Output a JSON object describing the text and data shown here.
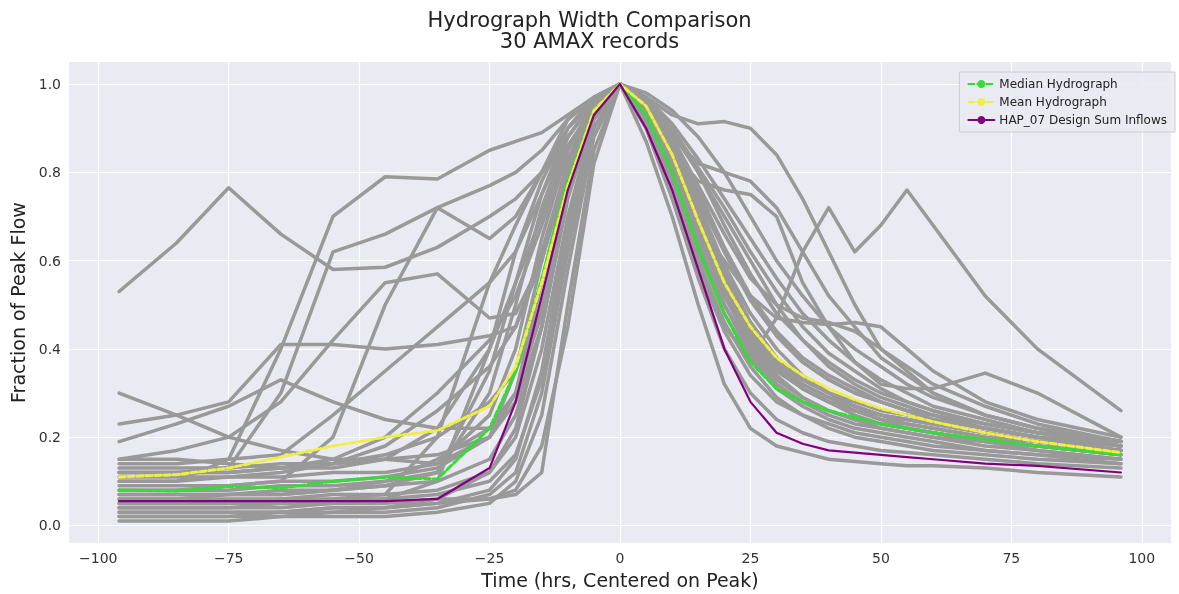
{
  "chart_data": {
    "type": "line",
    "title": "Hydrograph Width Comparison",
    "subtitle": "30 AMAX records",
    "xlabel": "Time (hrs, Centered on Peak)",
    "ylabel": "Fraction of Peak Flow",
    "x": [
      -96,
      -85,
      -75,
      -65,
      -55,
      -45,
      -35,
      -25,
      -20,
      -15,
      -10,
      -5,
      0,
      5,
      10,
      15,
      20,
      25,
      30,
      35,
      40,
      45,
      50,
      55,
      60,
      70,
      80,
      96
    ],
    "xlim": [
      -105.6,
      105.6
    ],
    "xticks": [
      {
        "value": -100,
        "label": "−100"
      },
      {
        "value": -75,
        "label": "−75"
      },
      {
        "value": -50,
        "label": "−50"
      },
      {
        "value": -25,
        "label": "−25"
      },
      0,
      25,
      50,
      75,
      100
    ],
    "ylim": [
      -0.04,
      1.05
    ],
    "yticks": [
      {
        "value": 0,
        "label": "0.0"
      },
      {
        "value": 0.2,
        "label": "0.2"
      },
      {
        "value": 0.4,
        "label": "0.4"
      },
      {
        "value": 0.6,
        "label": "0.6"
      },
      {
        "value": 0.8,
        "label": "0.8"
      },
      {
        "value": 1,
        "label": "1.0"
      }
    ],
    "grid": true,
    "legend": "top right",
    "marker": "none",
    "line_style": "solid",
    "series": [
      {
        "color": "#999999",
        "values": [
          0.53,
          0.64,
          0.765,
          0.66,
          0.58,
          0.585,
          0.63,
          0.7,
          0.74,
          0.8,
          0.88,
          0.96,
          1,
          0.92,
          0.8,
          0.6,
          0.45,
          0.38,
          0.47,
          0.62,
          0.72,
          0.62,
          0.68,
          0.76,
          0.68,
          0.52,
          0.4,
          0.26
        ]
      },
      {
        "color": "#999999",
        "values": [
          0.1,
          0.1,
          0.15,
          0.4,
          0.7,
          0.79,
          0.785,
          0.85,
          0.87,
          0.89,
          0.93,
          0.97,
          1,
          0.97,
          0.93,
          0.91,
          0.915,
          0.9,
          0.84,
          0.74,
          0.62,
          0.5,
          0.4,
          0.35,
          0.3,
          0.25,
          0.22,
          0.19
        ]
      },
      {
        "color": "#999999",
        "values": [
          0.15,
          0.17,
          0.2,
          0.28,
          0.42,
          0.55,
          0.57,
          0.47,
          0.48,
          0.6,
          0.8,
          0.95,
          1,
          0.95,
          0.88,
          0.82,
          0.8,
          0.78,
          0.72,
          0.62,
          0.52,
          0.45,
          0.38,
          0.34,
          0.3,
          0.25,
          0.22,
          0.18
        ]
      },
      {
        "color": "#999999",
        "values": [
          0.23,
          0.25,
          0.28,
          0.41,
          0.41,
          0.4,
          0.41,
          0.43,
          0.45,
          0.6,
          0.82,
          0.95,
          1,
          0.96,
          0.85,
          0.78,
          0.76,
          0.75,
          0.7,
          0.55,
          0.45,
          0.37,
          0.32,
          0.31,
          0.31,
          0.345,
          0.3,
          0.2
        ]
      },
      {
        "color": "#999999",
        "values": [
          0.19,
          0.23,
          0.27,
          0.33,
          0.28,
          0.24,
          0.22,
          0.22,
          0.3,
          0.55,
          0.8,
          0.94,
          1,
          0.93,
          0.8,
          0.68,
          0.6,
          0.52,
          0.47,
          0.46,
          0.455,
          0.46,
          0.45,
          0.4,
          0.35,
          0.28,
          0.24,
          0.2
        ]
      },
      {
        "color": "#999999",
        "values": [
          0.3,
          0.25,
          0.2,
          0.17,
          0.15,
          0.15,
          0.14,
          0.2,
          0.35,
          0.6,
          0.83,
          0.95,
          1,
          0.87,
          0.7,
          0.5,
          0.32,
          0.22,
          0.18,
          0.165,
          0.15,
          0.145,
          0.14,
          0.135,
          0.135,
          0.13,
          0.12,
          0.11
        ]
      },
      {
        "color": "#999999",
        "values": [
          0.12,
          0.12,
          0.13,
          0.3,
          0.62,
          0.66,
          0.72,
          0.77,
          0.8,
          0.85,
          0.92,
          0.97,
          1,
          0.95,
          0.85,
          0.72,
          0.58,
          0.46,
          0.38,
          0.33,
          0.3,
          0.27,
          0.25,
          0.23,
          0.22,
          0.2,
          0.19,
          0.17
        ]
      },
      {
        "color": "#999999",
        "values": [
          0.08,
          0.08,
          0.09,
          0.1,
          0.2,
          0.5,
          0.72,
          0.65,
          0.7,
          0.8,
          0.9,
          0.96,
          1,
          0.93,
          0.8,
          0.64,
          0.5,
          0.4,
          0.33,
          0.29,
          0.26,
          0.24,
          0.22,
          0.21,
          0.2,
          0.18,
          0.17,
          0.15
        ]
      },
      {
        "color": "#999999",
        "values": [
          0.04,
          0.04,
          0.04,
          0.04,
          0.05,
          0.05,
          0.06,
          0.06,
          0.07,
          0.12,
          0.5,
          0.85,
          1,
          0.96,
          0.88,
          0.76,
          0.63,
          0.52,
          0.43,
          0.37,
          0.33,
          0.3,
          0.28,
          0.26,
          0.25,
          0.22,
          0.2,
          0.18
        ]
      },
      {
        "color": "#999999",
        "values": [
          0.14,
          0.14,
          0.15,
          0.16,
          0.25,
          0.35,
          0.45,
          0.55,
          0.62,
          0.75,
          0.88,
          0.96,
          1,
          0.94,
          0.82,
          0.68,
          0.54,
          0.43,
          0.36,
          0.31,
          0.28,
          0.26,
          0.24,
          0.23,
          0.22,
          0.2,
          0.18,
          0.16
        ]
      },
      {
        "color": "#999999",
        "values": [
          0.12,
          0.12,
          0.12,
          0.13,
          0.15,
          0.2,
          0.3,
          0.42,
          0.52,
          0.68,
          0.85,
          0.95,
          1,
          0.9,
          0.75,
          0.58,
          0.44,
          0.34,
          0.28,
          0.25,
          0.23,
          0.21,
          0.2,
          0.19,
          0.18,
          0.17,
          0.16,
          0.15
        ]
      },
      {
        "color": "#999999",
        "values": [
          0.1,
          0.1,
          0.11,
          0.12,
          0.14,
          0.18,
          0.26,
          0.36,
          0.45,
          0.62,
          0.82,
          0.95,
          1,
          0.97,
          0.9,
          0.8,
          0.68,
          0.57,
          0.48,
          0.42,
          0.37,
          0.33,
          0.3,
          0.28,
          0.26,
          0.23,
          0.21,
          0.19
        ]
      },
      {
        "color": "#999999",
        "values": [
          0.09,
          0.09,
          0.09,
          0.1,
          0.1,
          0.11,
          0.13,
          0.2,
          0.3,
          0.5,
          0.78,
          0.94,
          1,
          0.92,
          0.78,
          0.62,
          0.48,
          0.38,
          0.31,
          0.27,
          0.24,
          0.22,
          0.21,
          0.2,
          0.19,
          0.17,
          0.16,
          0.14
        ]
      },
      {
        "color": "#999999",
        "values": [
          0.07,
          0.07,
          0.07,
          0.08,
          0.08,
          0.09,
          0.1,
          0.15,
          0.25,
          0.45,
          0.75,
          0.93,
          1,
          0.95,
          0.86,
          0.74,
          0.62,
          0.52,
          0.44,
          0.38,
          0.34,
          0.31,
          0.28,
          0.26,
          0.24,
          0.22,
          0.2,
          0.18
        ]
      },
      {
        "color": "#999999",
        "values": [
          0.06,
          0.06,
          0.06,
          0.06,
          0.07,
          0.07,
          0.08,
          0.12,
          0.2,
          0.4,
          0.7,
          0.92,
          1,
          0.91,
          0.76,
          0.6,
          0.46,
          0.36,
          0.29,
          0.25,
          0.22,
          0.2,
          0.19,
          0.18,
          0.17,
          0.16,
          0.15,
          0.14
        ]
      },
      {
        "color": "#999999",
        "values": [
          0.05,
          0.05,
          0.05,
          0.05,
          0.06,
          0.06,
          0.07,
          0.1,
          0.16,
          0.33,
          0.65,
          0.9,
          1,
          0.96,
          0.89,
          0.8,
          0.7,
          0.6,
          0.5,
          0.42,
          0.36,
          0.32,
          0.29,
          0.27,
          0.25,
          0.22,
          0.2,
          0.17
        ]
      },
      {
        "color": "#999999",
        "values": [
          0.03,
          0.03,
          0.03,
          0.03,
          0.04,
          0.04,
          0.05,
          0.08,
          0.15,
          0.35,
          0.68,
          0.92,
          1,
          0.94,
          0.84,
          0.7,
          0.56,
          0.45,
          0.37,
          0.32,
          0.29,
          0.26,
          0.24,
          0.22,
          0.21,
          0.19,
          0.17,
          0.15
        ]
      },
      {
        "color": "#999999",
        "values": [
          0.02,
          0.02,
          0.02,
          0.02,
          0.03,
          0.03,
          0.04,
          0.07,
          0.12,
          0.3,
          0.62,
          0.9,
          1,
          0.93,
          0.82,
          0.67,
          0.52,
          0.41,
          0.34,
          0.29,
          0.26,
          0.24,
          0.23,
          0.22,
          0.21,
          0.19,
          0.18,
          0.17
        ]
      },
      {
        "color": "#999999",
        "values": [
          0.01,
          0.01,
          0.01,
          0.02,
          0.02,
          0.02,
          0.03,
          0.05,
          0.1,
          0.25,
          0.58,
          0.88,
          1,
          0.97,
          0.91,
          0.83,
          0.74,
          0.65,
          0.56,
          0.48,
          0.42,
          0.37,
          0.33,
          0.3,
          0.27,
          0.24,
          0.21,
          0.18
        ]
      },
      {
        "color": "#999999",
        "values": [
          0.13,
          0.13,
          0.13,
          0.14,
          0.14,
          0.15,
          0.16,
          0.2,
          0.28,
          0.45,
          0.74,
          0.93,
          1,
          0.96,
          0.88,
          0.77,
          0.66,
          0.56,
          0.5,
          0.47,
          0.46,
          0.44,
          0.4,
          0.36,
          0.32,
          0.27,
          0.23,
          0.19
        ]
      },
      {
        "color": "#999999",
        "values": [
          0.11,
          0.11,
          0.11,
          0.11,
          0.12,
          0.12,
          0.14,
          0.25,
          0.4,
          0.65,
          0.85,
          0.96,
          1,
          0.92,
          0.79,
          0.64,
          0.5,
          0.39,
          0.32,
          0.28,
          0.25,
          0.23,
          0.22,
          0.21,
          0.2,
          0.19,
          0.18,
          0.16
        ]
      },
      {
        "color": "#999999",
        "values": [
          0.08,
          0.08,
          0.08,
          0.09,
          0.09,
          0.1,
          0.12,
          0.3,
          0.5,
          0.72,
          0.88,
          0.96,
          1,
          0.95,
          0.87,
          0.75,
          0.62,
          0.51,
          0.43,
          0.37,
          0.33,
          0.3,
          0.28,
          0.26,
          0.25,
          0.23,
          0.21,
          0.19
        ]
      },
      {
        "color": "#999999",
        "values": [
          0.06,
          0.06,
          0.07,
          0.07,
          0.08,
          0.09,
          0.12,
          0.35,
          0.55,
          0.75,
          0.9,
          0.97,
          1,
          0.94,
          0.83,
          0.69,
          0.55,
          0.44,
          0.36,
          0.31,
          0.28,
          0.25,
          0.23,
          0.22,
          0.21,
          0.19,
          0.18,
          0.16
        ]
      },
      {
        "color": "#999999",
        "values": [
          0.05,
          0.05,
          0.05,
          0.06,
          0.06,
          0.07,
          0.2,
          0.55,
          0.68,
          0.8,
          0.92,
          0.97,
          1,
          0.98,
          0.94,
          0.88,
          0.8,
          0.7,
          0.6,
          0.52,
          0.45,
          0.4,
          0.36,
          0.32,
          0.29,
          0.25,
          0.22,
          0.19
        ]
      },
      {
        "color": "#999999",
        "values": [
          0.15,
          0.15,
          0.14,
          0.13,
          0.13,
          0.15,
          0.22,
          0.4,
          0.55,
          0.7,
          0.86,
          0.95,
          1,
          0.93,
          0.81,
          0.66,
          0.52,
          0.42,
          0.35,
          0.31,
          0.28,
          0.26,
          0.25,
          0.24,
          0.23,
          0.21,
          0.19,
          0.17
        ]
      },
      {
        "color": "#999999",
        "values": [
          0.04,
          0.04,
          0.04,
          0.05,
          0.05,
          0.06,
          0.1,
          0.4,
          0.62,
          0.78,
          0.9,
          0.97,
          1,
          0.9,
          0.74,
          0.56,
          0.4,
          0.3,
          0.24,
          0.21,
          0.19,
          0.18,
          0.17,
          0.165,
          0.16,
          0.15,
          0.14,
          0.13
        ]
      },
      {
        "color": "#999999",
        "values": [
          0.03,
          0.03,
          0.03,
          0.03,
          0.04,
          0.04,
          0.05,
          0.06,
          0.08,
          0.18,
          0.45,
          0.82,
          1,
          0.95,
          0.86,
          0.73,
          0.59,
          0.48,
          0.4,
          0.34,
          0.3,
          0.27,
          0.25,
          0.24,
          0.23,
          0.21,
          0.19,
          0.17
        ]
      },
      {
        "color": "#999999",
        "values": [
          0.12,
          0.12,
          0.12,
          0.13,
          0.14,
          0.16,
          0.2,
          0.28,
          0.35,
          0.5,
          0.75,
          0.93,
          1,
          0.92,
          0.8,
          0.66,
          0.53,
          0.43,
          0.36,
          0.32,
          0.29,
          0.27,
          0.25,
          0.24,
          0.23,
          0.21,
          0.19,
          0.17
        ]
      },
      {
        "color": "#999999",
        "values": [
          0.07,
          0.07,
          0.07,
          0.07,
          0.08,
          0.1,
          0.15,
          0.22,
          0.3,
          0.48,
          0.76,
          0.93,
          1,
          0.96,
          0.9,
          0.81,
          0.72,
          0.62,
          0.53,
          0.45,
          0.39,
          0.35,
          0.31,
          0.28,
          0.26,
          0.23,
          0.21,
          0.18
        ]
      },
      {
        "color": "#999999",
        "values": [
          0.02,
          0.02,
          0.02,
          0.03,
          0.03,
          0.04,
          0.06,
          0.12,
          0.22,
          0.45,
          0.75,
          0.93,
          1,
          0.94,
          0.84,
          0.71,
          0.57,
          0.46,
          0.38,
          0.33,
          0.3,
          0.28,
          0.26,
          0.25,
          0.24,
          0.22,
          0.2,
          0.18
        ]
      },
      {
        "name": "Median Hydrograph",
        "color": "#33dd33",
        "line_style": "dashed",
        "values": [
          0.08,
          0.078,
          0.088,
          0.085,
          0.1,
          0.11,
          0.105,
          0.22,
          0.35,
          0.56,
          0.78,
          0.94,
          1,
          0.93,
          0.8,
          0.63,
          0.48,
          0.37,
          0.31,
          0.28,
          0.26,
          0.245,
          0.23,
          0.22,
          0.21,
          0.195,
          0.18,
          0.16
        ]
      },
      {
        "name": "Mean Hydrograph",
        "color": "#eeee44",
        "line_style": "dashed",
        "values": [
          0.11,
          0.115,
          0.13,
          0.155,
          0.18,
          0.2,
          0.215,
          0.27,
          0.36,
          0.55,
          0.77,
          0.94,
          1,
          0.95,
          0.84,
          0.69,
          0.55,
          0.45,
          0.38,
          0.34,
          0.31,
          0.285,
          0.265,
          0.25,
          0.235,
          0.21,
          0.19,
          0.165
        ]
      },
      {
        "name": "HAP_07 Design Sum Inflows",
        "color": "#800080",
        "values": [
          0.055,
          0.055,
          0.055,
          0.055,
          0.055,
          0.055,
          0.06,
          0.13,
          0.28,
          0.52,
          0.76,
          0.93,
          1,
          0.9,
          0.76,
          0.58,
          0.4,
          0.28,
          0.21,
          0.185,
          0.17,
          0.165,
          0.16,
          0.155,
          0.15,
          0.14,
          0.135,
          0.12
        ]
      }
    ]
  }
}
